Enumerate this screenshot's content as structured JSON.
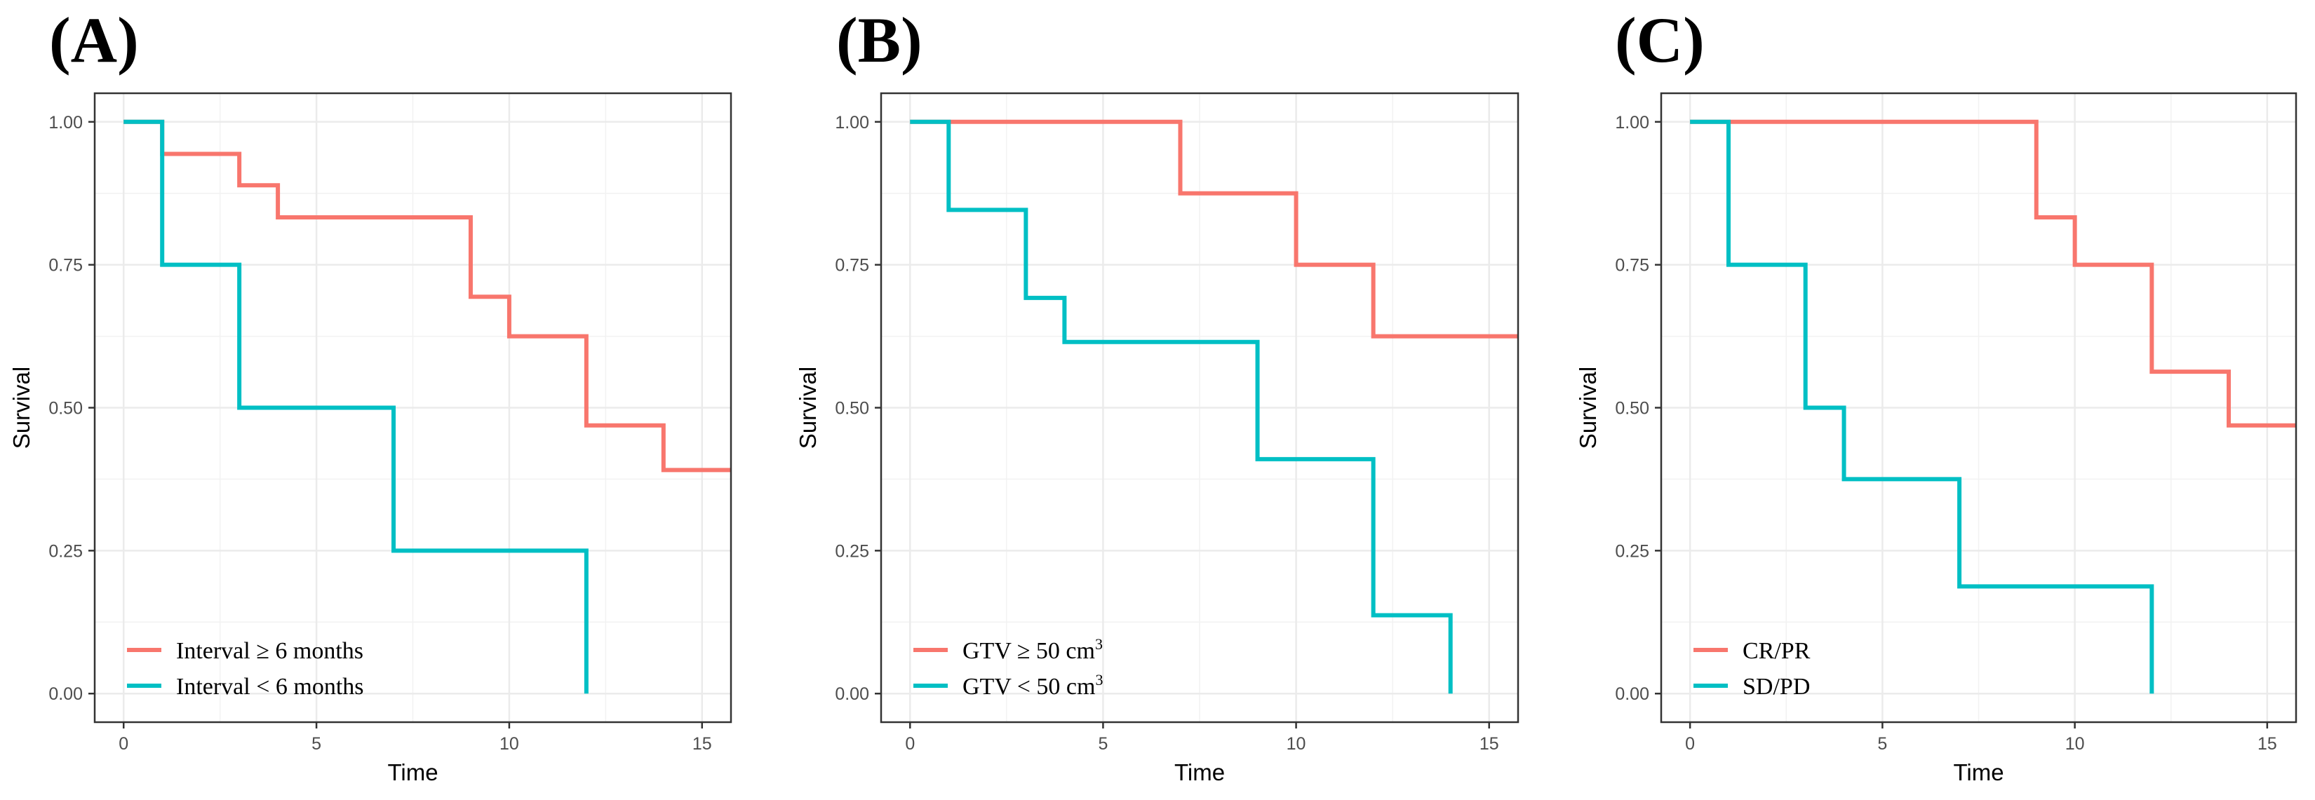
{
  "chart_data": [
    {
      "type": "line",
      "panel_label": "(A)",
      "xlabel": "Time",
      "ylabel": "Survival",
      "xlim": [
        -0.75,
        15.75
      ],
      "ylim": [
        -0.05,
        1.05
      ],
      "x_ticks": [
        0,
        5,
        10,
        15
      ],
      "x_tick_labels": [
        "0",
        "5",
        "10",
        "15"
      ],
      "y_ticks": [
        0,
        0.25,
        0.5,
        0.75,
        1.0
      ],
      "y_tick_labels": [
        "0.00",
        "0.25",
        "0.50",
        "0.75",
        "1.00"
      ],
      "grid": true,
      "legend_position": "bottom-left",
      "series": [
        {
          "name": "Interval ≥ 6 months",
          "legend_main": "Interval ≥ 6 months",
          "legend_sup": "",
          "color": "#f8766d",
          "steps": [
            [
              0,
              1.0
            ],
            [
              1,
              0.944
            ],
            [
              3,
              0.889
            ],
            [
              4,
              0.833
            ],
            [
              9,
              0.694
            ],
            [
              10,
              0.625
            ],
            [
              12,
              0.469
            ],
            [
              14,
              0.391
            ]
          ],
          "end_x": 15.75
        },
        {
          "name": "Interval < 6 months",
          "legend_main": "Interval < 6 months",
          "legend_sup": "",
          "color": "#00bfc4",
          "steps": [
            [
              0,
              1.0
            ],
            [
              1,
              0.75
            ],
            [
              3,
              0.5
            ],
            [
              7,
              0.25
            ],
            [
              12,
              0.0
            ]
          ],
          "end_x": 12
        }
      ]
    },
    {
      "type": "line",
      "panel_label": "(B)",
      "xlabel": "Time",
      "ylabel": "Survival",
      "xlim": [
        -0.75,
        15.75
      ],
      "ylim": [
        -0.05,
        1.05
      ],
      "x_ticks": [
        0,
        5,
        10,
        15
      ],
      "x_tick_labels": [
        "0",
        "5",
        "10",
        "15"
      ],
      "y_ticks": [
        0,
        0.25,
        0.5,
        0.75,
        1.0
      ],
      "y_tick_labels": [
        "0.00",
        "0.25",
        "0.50",
        "0.75",
        "1.00"
      ],
      "grid": true,
      "legend_position": "bottom-left",
      "series": [
        {
          "name": "GTV ≥ 50 cm³",
          "legend_main": "GTV ≥ 50 cm",
          "legend_sup": "3",
          "color": "#f8766d",
          "steps": [
            [
              0,
              1.0
            ],
            [
              7,
              0.875
            ],
            [
              10,
              0.75
            ],
            [
              12,
              0.625
            ]
          ],
          "end_x": 15.75
        },
        {
          "name": "GTV < 50 cm³",
          "legend_main": "GTV < 50 cm",
          "legend_sup": "3",
          "color": "#00bfc4",
          "steps": [
            [
              0,
              1.0
            ],
            [
              1,
              0.846
            ],
            [
              3,
              0.692
            ],
            [
              4,
              0.615
            ],
            [
              9,
              0.41
            ],
            [
              12,
              0.137
            ],
            [
              14,
              0.0
            ]
          ],
          "end_x": 14
        }
      ]
    },
    {
      "type": "line",
      "panel_label": "(C)",
      "xlabel": "Time",
      "ylabel": "Survival",
      "xlim": [
        -0.75,
        15.75
      ],
      "ylim": [
        -0.05,
        1.05
      ],
      "x_ticks": [
        0,
        5,
        10,
        15
      ],
      "x_tick_labels": [
        "0",
        "5",
        "10",
        "15"
      ],
      "y_ticks": [
        0,
        0.25,
        0.5,
        0.75,
        1.0
      ],
      "y_tick_labels": [
        "0.00",
        "0.25",
        "0.50",
        "0.75",
        "1.00"
      ],
      "grid": true,
      "legend_position": "bottom-left",
      "series": [
        {
          "name": "CR/PR",
          "legend_main": "CR/PR",
          "legend_sup": "",
          "color": "#f8766d",
          "steps": [
            [
              0,
              1.0
            ],
            [
              9,
              0.833
            ],
            [
              10,
              0.75
            ],
            [
              12,
              0.563
            ],
            [
              14,
              0.469
            ]
          ],
          "end_x": 15.75
        },
        {
          "name": "SD/PD",
          "legend_main": "SD/PD",
          "legend_sup": "",
          "color": "#00bfc4",
          "steps": [
            [
              0,
              1.0
            ],
            [
              1,
              0.75
            ],
            [
              3,
              0.5
            ],
            [
              4,
              0.375
            ],
            [
              7,
              0.1875
            ],
            [
              12,
              0.0
            ]
          ],
          "end_x": 12
        }
      ]
    }
  ]
}
